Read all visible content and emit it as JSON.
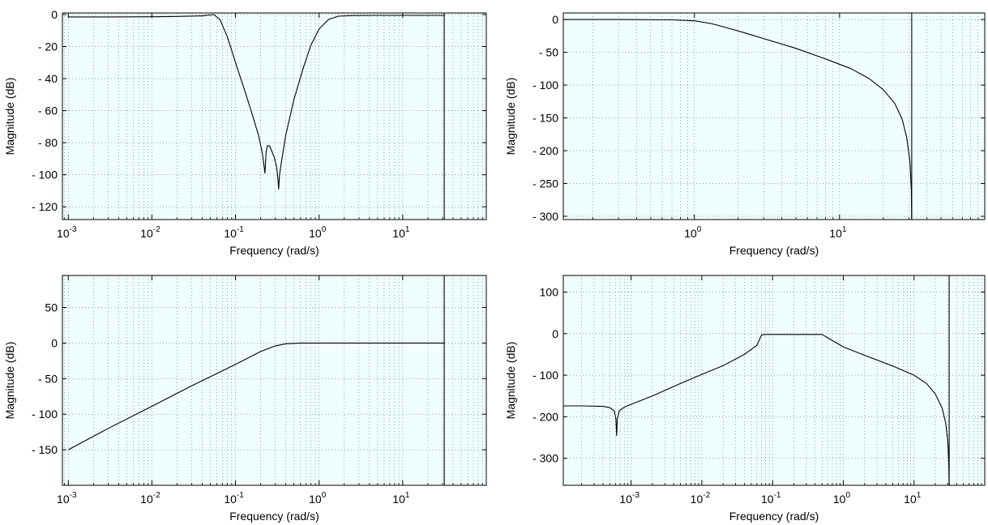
{
  "chart_data": [
    {
      "type": "line",
      "id": "top-left",
      "xlabel": "Frequency  (rad/s)",
      "ylabel": "Magnitude (dB)",
      "xscale": "log",
      "xlim": [
        0.00085,
        100
      ],
      "ylim": [
        -128,
        1
      ],
      "yticks": [
        {
          "value": 0,
          "label": "0"
        },
        {
          "value": -20,
          "label": "- 20"
        },
        {
          "value": -40,
          "label": "- 40"
        },
        {
          "value": -60,
          "label": "- 60"
        },
        {
          "value": -80,
          "label": "- 80"
        },
        {
          "value": -100,
          "label": "- 100"
        },
        {
          "value": -120,
          "label": "- 120"
        }
      ],
      "xticks_exp": [
        "-3",
        "-2",
        "-1",
        "0",
        "1"
      ],
      "nyquist": 31.4,
      "grid": true,
      "series": [
        {
          "x": [
            0.001,
            0.003,
            0.01,
            0.02,
            0.04,
            0.055,
            0.065,
            0.08,
            0.1,
            0.13,
            0.16,
            0.19,
            0.21,
            0.225,
            0.228,
            0.232,
            0.24,
            0.255,
            0.27,
            0.29,
            0.31,
            0.322,
            0.328,
            0.336,
            0.36,
            0.4,
            0.5,
            0.65,
            0.8,
            1.0,
            1.3,
            1.7,
            2.5,
            5,
            10,
            31.4
          ],
          "y": [
            -1.5,
            -1.5,
            -1.4,
            -1.2,
            -0.8,
            0,
            -3,
            -14,
            -30,
            -48,
            -63,
            -76,
            -87,
            -99,
            -94,
            -86,
            -82,
            -82,
            -85,
            -89,
            -95,
            -103,
            -109,
            -100,
            -90,
            -75,
            -53,
            -33,
            -19,
            -9,
            -3,
            -1,
            -0.6,
            -0.5,
            -0.5,
            -0.5
          ]
        }
      ]
    },
    {
      "type": "line",
      "id": "top-right",
      "xlabel": "Frequency  (rad/s)",
      "ylabel": "Magnitude (dB)",
      "xscale": "log",
      "xlim": [
        0.125,
        100
      ],
      "ylim": [
        -305,
        10
      ],
      "yticks": [
        {
          "value": 0,
          "label": "0"
        },
        {
          "value": -50,
          "label": "- 50"
        },
        {
          "value": -100,
          "label": "- 100"
        },
        {
          "value": -150,
          "label": "- 150"
        },
        {
          "value": -200,
          "label": "- 200"
        },
        {
          "value": -250,
          "label": "- 250"
        },
        {
          "value": -300,
          "label": "- 300"
        }
      ],
      "xticks_exp": [
        "0",
        "1"
      ],
      "nyquist": 31.4,
      "grid": true,
      "series": [
        {
          "x": [
            0.125,
            0.3,
            0.7,
            1.0,
            1.3,
            1.7,
            2.2,
            3,
            5,
            8,
            12,
            16,
            20,
            24,
            27,
            29,
            30.5,
            31.2,
            31.4
          ],
          "y": [
            0,
            0,
            -0.5,
            -2,
            -6,
            -13,
            -20,
            -29,
            -44,
            -60,
            -75,
            -90,
            -107,
            -128,
            -152,
            -180,
            -215,
            -260,
            -305
          ]
        }
      ]
    },
    {
      "type": "line",
      "id": "bottom-left",
      "xlabel": "Frequency  (rad/s)",
      "ylabel": "Magnitude (dB)",
      "xscale": "log",
      "xlim": [
        0.00085,
        100
      ],
      "ylim": [
        -200,
        95
      ],
      "yticks": [
        {
          "value": 50,
          "label": "50"
        },
        {
          "value": 0,
          "label": "0"
        },
        {
          "value": -50,
          "label": "- 50"
        },
        {
          "value": -100,
          "label": "- 100"
        },
        {
          "value": -150,
          "label": "- 150"
        }
      ],
      "xticks_exp": [
        "-3",
        "-2",
        "-1",
        "0",
        "1"
      ],
      "nyquist": 31.4,
      "grid": true,
      "series": [
        {
          "x": [
            0.001,
            0.003,
            0.01,
            0.03,
            0.1,
            0.2,
            0.3,
            0.4,
            0.6,
            1,
            3,
            10,
            31.4
          ],
          "y": [
            -150,
            -120,
            -89,
            -60,
            -30,
            -12,
            -4,
            -1,
            0,
            0,
            0,
            0,
            0
          ]
        }
      ]
    },
    {
      "type": "line",
      "id": "bottom-right",
      "xlabel": "Frequency  (rad/s)",
      "ylabel": "Magnitude (dB)",
      "xscale": "log",
      "xlim": [
        0.00011,
        100
      ],
      "ylim": [
        -365,
        140
      ],
      "yticks": [
        {
          "value": 100,
          "label": "100"
        },
        {
          "value": 0,
          "label": "0"
        },
        {
          "value": -100,
          "label": "- 100"
        },
        {
          "value": -200,
          "label": "- 200"
        },
        {
          "value": -300,
          "label": "- 300"
        }
      ],
      "xticks_exp": [
        "-3",
        "-2",
        "-1",
        "0",
        "1"
      ],
      "nyquist": 31.4,
      "grid": true,
      "series": [
        {
          "x": [
            0.00011,
            0.0002,
            0.0004,
            0.0005,
            0.00058,
            0.00061,
            0.000625,
            0.00064,
            0.00068,
            0.0008,
            0.001,
            0.002,
            0.005,
            0.01,
            0.02,
            0.04,
            0.06,
            0.07,
            0.08,
            0.1,
            0.2,
            0.4,
            0.5,
            0.6,
            0.8,
            1.0,
            2,
            5,
            10,
            15,
            20,
            25,
            28,
            30,
            31,
            31.4
          ],
          "y": [
            -174,
            -174,
            -175,
            -178,
            -186,
            -205,
            -245,
            -205,
            -186,
            -177,
            -170,
            -150,
            -120,
            -98,
            -77,
            -50,
            -28,
            -3,
            -2,
            -2,
            -2,
            -2,
            -2,
            -10,
            -22,
            -32,
            -52,
            -78,
            -100,
            -120,
            -145,
            -180,
            -215,
            -260,
            -310,
            -365
          ]
        }
      ]
    }
  ]
}
